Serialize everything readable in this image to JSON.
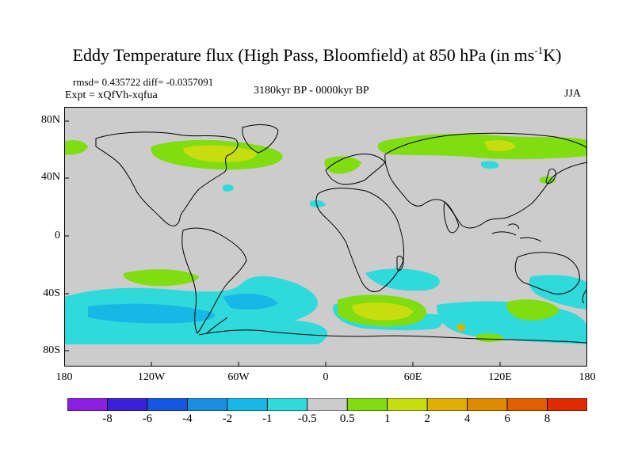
{
  "title_main": "Eddy Temperature flux (High Pass, Bloomfield) at 850 hPa (in ms",
  "title_sup": "-1",
  "title_end": "K)",
  "stats": "rmsd= 0.435722 diff= -0.0357091",
  "experiment": "Expt = xQfVh-xqfua",
  "period": "3180kyr BP - 0000kyr BP",
  "season": "JJA",
  "lat_ticks": [
    "80N",
    "40N",
    "0",
    "40S",
    "80S"
  ],
  "lon_ticks": [
    "180",
    "120W",
    "60W",
    "0",
    "60E",
    "120E",
    "180"
  ],
  "colorbar": {
    "labels": [
      "-8",
      "-6",
      "-4",
      "-2",
      "-1",
      "-0.5",
      "0.5",
      "1",
      "2",
      "4",
      "6",
      "8"
    ],
    "colors": [
      "#8a1fe0",
      "#3a20d8",
      "#1457e0",
      "#1a8fe0",
      "#18b8e6",
      "#30dada",
      "#cccccc",
      "#80dd10",
      "#c8dd10",
      "#e0b000",
      "#e08a00",
      "#e06000",
      "#e02a00"
    ]
  },
  "map_colors": {
    "neutral": "#cccccc",
    "pos1": "#80dd10",
    "pos2": "#c8dd10",
    "neg1": "#30dada",
    "neg2": "#18b8e6",
    "pos4": "#e0b000"
  }
}
